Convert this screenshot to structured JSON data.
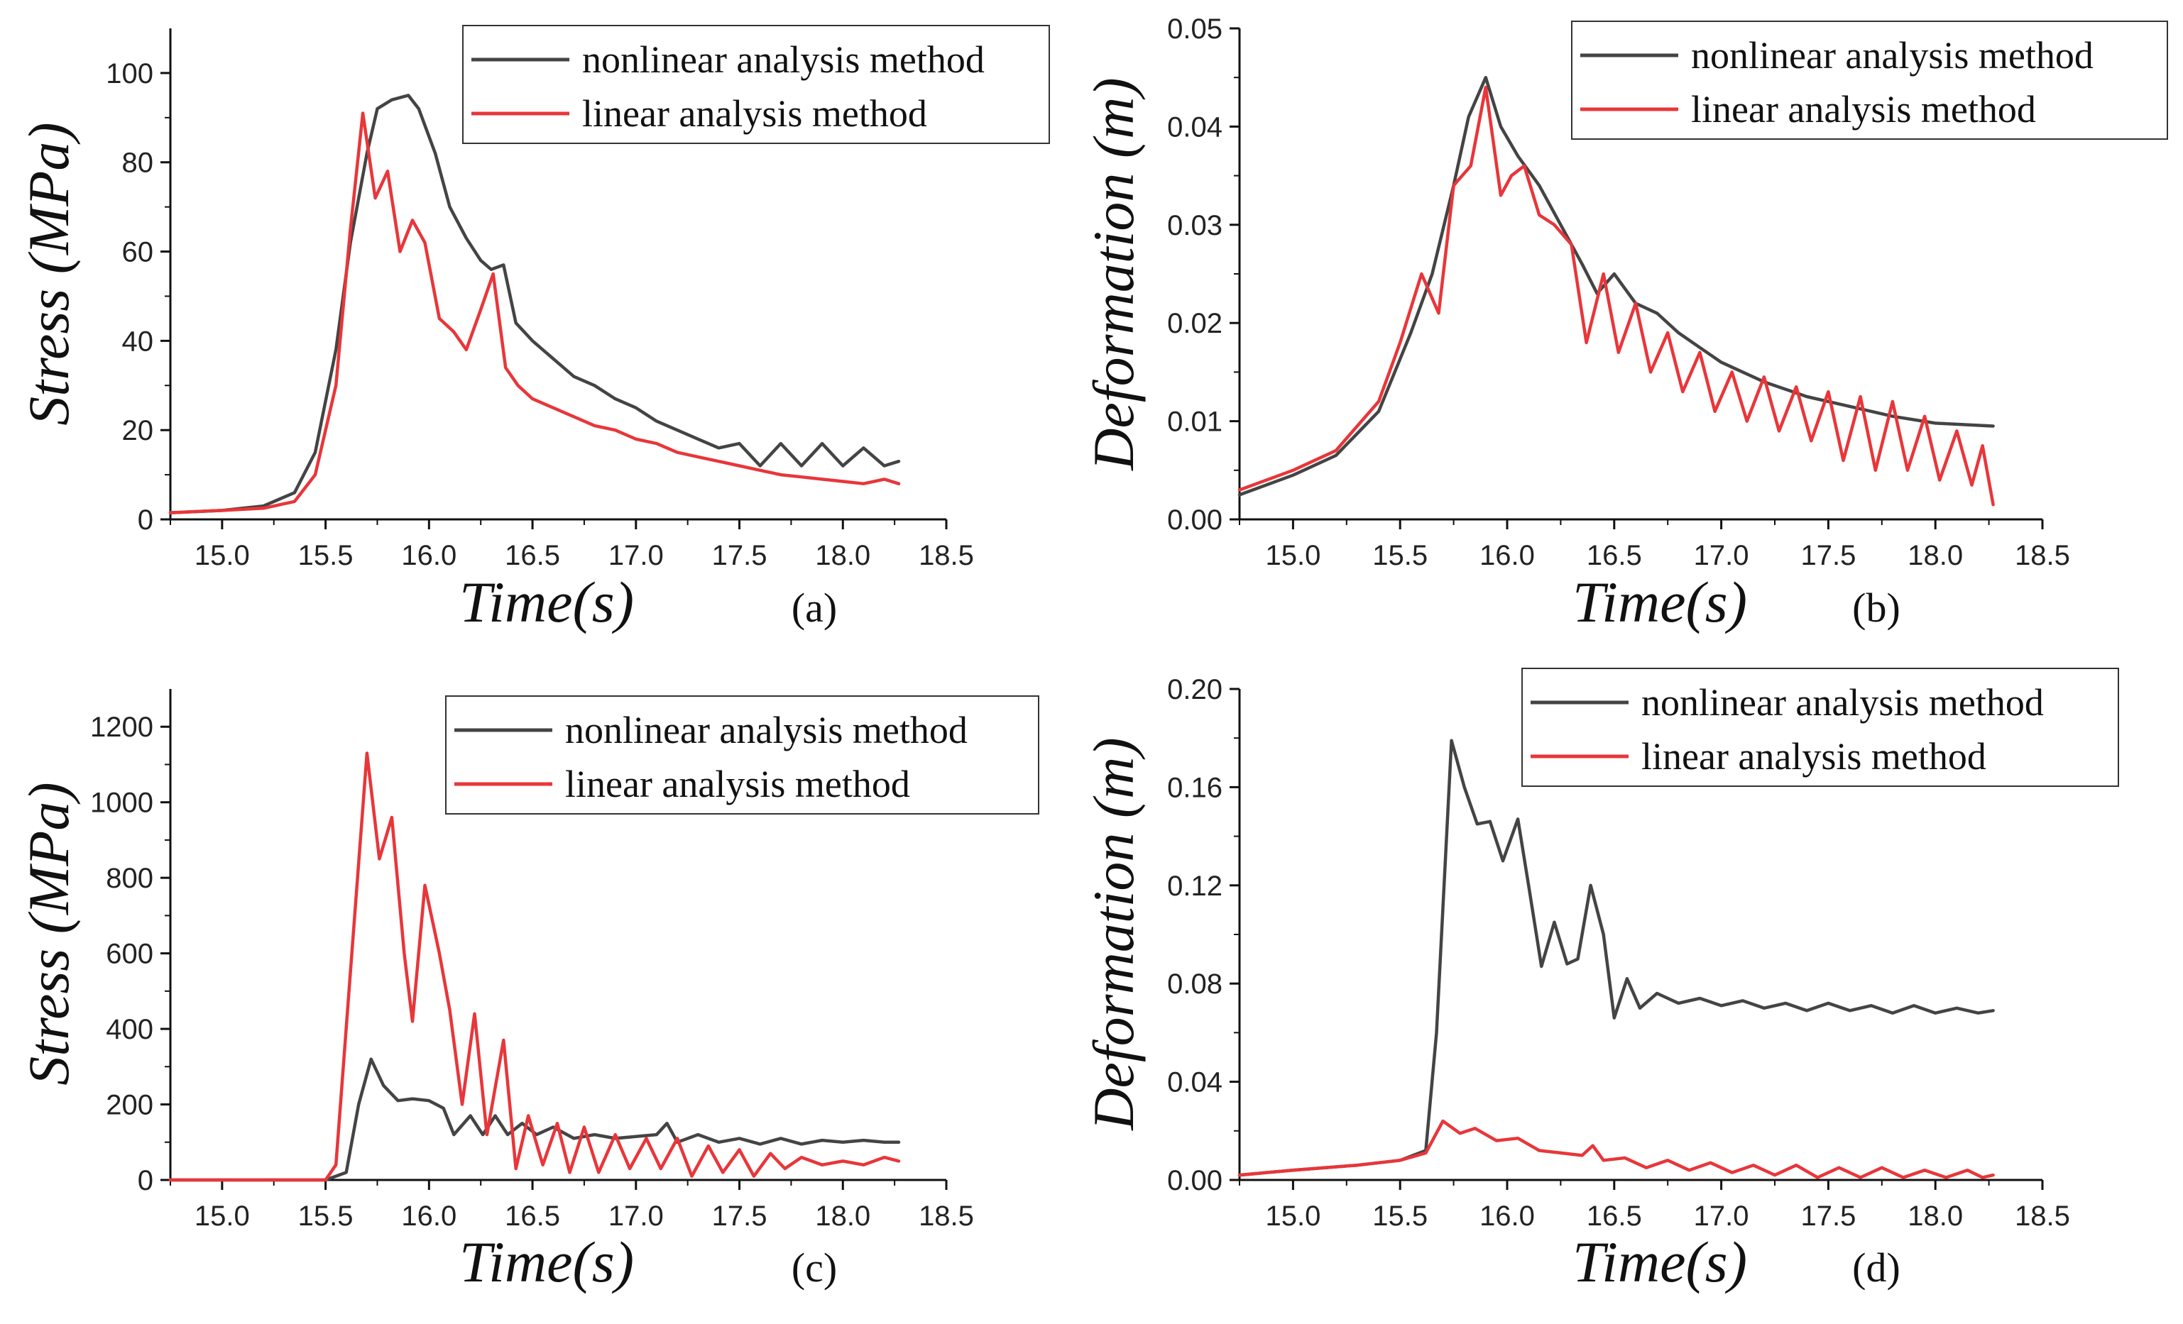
{
  "colors": {
    "nonlinear": "#444444",
    "linear": "#e8363a",
    "axis": "#111111",
    "legend_border": "#333333"
  },
  "chart_data": [
    {
      "id": "a",
      "type": "line",
      "panel_label": "(a)",
      "xlabel": "Time(s)",
      "ylabel": "Stress (MPa)",
      "xlim": [
        14.75,
        18.5
      ],
      "ylim": [
        0,
        110
      ],
      "xticks": [
        15.0,
        15.5,
        16.0,
        16.5,
        17.0,
        17.5,
        18.0,
        18.5
      ],
      "xtick_labels": [
        "15.0",
        "15.5",
        "16.0",
        "16.5",
        "17.0",
        "17.5",
        "18.0",
        "18.5"
      ],
      "yticks": [
        0,
        20,
        40,
        60,
        80,
        100
      ],
      "ytick_labels": [
        "0",
        "20",
        "40",
        "60",
        "80",
        "100"
      ],
      "legend": [
        "nonlinear analysis method",
        "linear analysis method"
      ],
      "series": [
        {
          "name": "nonlinear analysis method",
          "color_key": "nonlinear",
          "x": [
            14.75,
            15.0,
            15.2,
            15.35,
            15.45,
            15.55,
            15.62,
            15.7,
            15.75,
            15.82,
            15.9,
            15.95,
            16.03,
            16.1,
            16.18,
            16.25,
            16.3,
            16.36,
            16.42,
            16.5,
            16.6,
            16.7,
            16.8,
            16.9,
            17.0,
            17.1,
            17.2,
            17.3,
            17.4,
            17.5,
            17.6,
            17.7,
            17.8,
            17.9,
            18.0,
            18.1,
            18.2,
            18.27
          ],
          "y": [
            1.5,
            2,
            3,
            6,
            15,
            38,
            62,
            82,
            92,
            94,
            95,
            92,
            82,
            70,
            63,
            58,
            56,
            57,
            44,
            40,
            36,
            32,
            30,
            27,
            25,
            22,
            20,
            18,
            16,
            17,
            12,
            17,
            12,
            17,
            12,
            16,
            12,
            13
          ]
        },
        {
          "name": "linear analysis method",
          "color_key": "linear",
          "x": [
            14.75,
            15.0,
            15.2,
            15.35,
            15.45,
            15.55,
            15.62,
            15.68,
            15.74,
            15.8,
            15.86,
            15.92,
            15.98,
            16.05,
            16.12,
            16.18,
            16.25,
            16.31,
            16.37,
            16.43,
            16.5,
            16.6,
            16.7,
            16.8,
            16.9,
            17.0,
            17.1,
            17.2,
            17.3,
            17.4,
            17.5,
            17.6,
            17.7,
            17.8,
            17.9,
            18.0,
            18.1,
            18.2,
            18.27
          ],
          "y": [
            1.5,
            2,
            2.5,
            4,
            10,
            30,
            65,
            91,
            72,
            78,
            60,
            67,
            62,
            45,
            42,
            38,
            47,
            55,
            34,
            30,
            27,
            25,
            23,
            21,
            20,
            18,
            17,
            15,
            14,
            13,
            12,
            11,
            10,
            9.5,
            9,
            8.5,
            8,
            9,
            8
          ]
        }
      ]
    },
    {
      "id": "b",
      "type": "line",
      "panel_label": "(b)",
      "xlabel": "Time(s)",
      "ylabel": "Deformation (m)",
      "xlim": [
        14.75,
        18.5
      ],
      "ylim": [
        0,
        0.05
      ],
      "xticks": [
        15.0,
        15.5,
        16.0,
        16.5,
        17.0,
        17.5,
        18.0,
        18.5
      ],
      "xtick_labels": [
        "15.0",
        "15.5",
        "16.0",
        "16.5",
        "17.0",
        "17.5",
        "18.0",
        "18.5"
      ],
      "yticks": [
        0,
        0.01,
        0.02,
        0.03,
        0.04,
        0.05
      ],
      "ytick_labels": [
        "0.00",
        "0.01",
        "0.02",
        "0.03",
        "0.04",
        "0.05"
      ],
      "legend": [
        "nonlinear analysis method",
        "linear analysis method"
      ],
      "series": [
        {
          "name": "nonlinear analysis method",
          "color_key": "nonlinear",
          "x": [
            14.75,
            15.0,
            15.2,
            15.4,
            15.55,
            15.65,
            15.75,
            15.82,
            15.9,
            15.97,
            16.05,
            16.15,
            16.25,
            16.35,
            16.42,
            16.5,
            16.6,
            16.7,
            16.8,
            16.9,
            17.0,
            17.2,
            17.4,
            17.6,
            17.8,
            18.0,
            18.27
          ],
          "y": [
            0.0025,
            0.0045,
            0.0065,
            0.011,
            0.019,
            0.025,
            0.034,
            0.041,
            0.045,
            0.04,
            0.037,
            0.034,
            0.03,
            0.026,
            0.023,
            0.025,
            0.022,
            0.021,
            0.019,
            0.0175,
            0.016,
            0.014,
            0.0125,
            0.0115,
            0.0105,
            0.0098,
            0.0095
          ]
        },
        {
          "name": "linear analysis method",
          "color_key": "linear",
          "x": [
            14.75,
            15.0,
            15.2,
            15.4,
            15.5,
            15.6,
            15.68,
            15.75,
            15.83,
            15.9,
            15.97,
            16.02,
            16.08,
            16.15,
            16.22,
            16.3,
            16.37,
            16.45,
            16.52,
            16.6,
            16.67,
            16.75,
            16.82,
            16.9,
            16.97,
            17.05,
            17.12,
            17.2,
            17.27,
            17.35,
            17.42,
            17.5,
            17.57,
            17.65,
            17.72,
            17.8,
            17.87,
            17.95,
            18.02,
            18.1,
            18.17,
            18.22,
            18.27
          ],
          "y": [
            0.003,
            0.005,
            0.007,
            0.012,
            0.018,
            0.025,
            0.021,
            0.034,
            0.036,
            0.044,
            0.033,
            0.035,
            0.036,
            0.031,
            0.03,
            0.028,
            0.018,
            0.025,
            0.017,
            0.022,
            0.015,
            0.019,
            0.013,
            0.017,
            0.011,
            0.015,
            0.01,
            0.0145,
            0.009,
            0.0135,
            0.008,
            0.013,
            0.006,
            0.0125,
            0.005,
            0.012,
            0.005,
            0.0105,
            0.004,
            0.009,
            0.0035,
            0.0075,
            0.0015
          ]
        }
      ]
    },
    {
      "id": "c",
      "type": "line",
      "panel_label": "(c)",
      "xlabel": "Time(s)",
      "ylabel": "Stress (MPa)",
      "xlim": [
        14.75,
        18.5
      ],
      "ylim": [
        0,
        1300
      ],
      "xticks": [
        15.0,
        15.5,
        16.0,
        16.5,
        17.0,
        17.5,
        18.0,
        18.5
      ],
      "xtick_labels": [
        "15.0",
        "15.5",
        "16.0",
        "16.5",
        "17.0",
        "17.5",
        "18.0",
        "18.5"
      ],
      "yticks": [
        0,
        200,
        400,
        600,
        800,
        1000,
        1200
      ],
      "ytick_labels": [
        "0",
        "200",
        "400",
        "600",
        "800",
        "1000",
        "1200"
      ],
      "legend": [
        "nonlinear analysis method",
        "linear analysis method"
      ],
      "series": [
        {
          "name": "nonlinear analysis method",
          "color_key": "nonlinear",
          "x": [
            14.75,
            15.5,
            15.6,
            15.66,
            15.72,
            15.78,
            15.85,
            15.92,
            16.0,
            16.07,
            16.12,
            16.2,
            16.26,
            16.32,
            16.38,
            16.45,
            16.52,
            16.6,
            16.7,
            16.8,
            16.9,
            17.0,
            17.1,
            17.15,
            17.2,
            17.3,
            17.4,
            17.5,
            17.6,
            17.7,
            17.8,
            17.9,
            18.0,
            18.1,
            18.2,
            18.27
          ],
          "y": [
            0,
            0,
            20,
            200,
            320,
            250,
            210,
            215,
            210,
            190,
            120,
            170,
            120,
            170,
            120,
            150,
            120,
            140,
            110,
            120,
            110,
            115,
            120,
            150,
            100,
            120,
            100,
            110,
            95,
            110,
            95,
            105,
            100,
            105,
            100,
            100
          ]
        },
        {
          "name": "linear analysis method",
          "color_key": "linear",
          "x": [
            14.75,
            15.5,
            15.55,
            15.62,
            15.7,
            15.76,
            15.82,
            15.88,
            15.92,
            15.98,
            16.05,
            16.1,
            16.16,
            16.22,
            16.28,
            16.36,
            16.42,
            16.48,
            16.55,
            16.62,
            16.68,
            16.75,
            16.82,
            16.9,
            16.97,
            17.05,
            17.12,
            17.2,
            17.27,
            17.35,
            17.42,
            17.5,
            17.57,
            17.65,
            17.72,
            17.8,
            17.9,
            18.0,
            18.1,
            18.2,
            18.27
          ],
          "y": [
            0,
            0,
            40,
            550,
            1130,
            850,
            960,
            600,
            420,
            780,
            600,
            450,
            200,
            440,
            120,
            370,
            30,
            170,
            40,
            150,
            20,
            140,
            20,
            120,
            30,
            110,
            30,
            110,
            10,
            90,
            20,
            80,
            10,
            70,
            30,
            60,
            40,
            50,
            40,
            60,
            50
          ]
        }
      ]
    },
    {
      "id": "d",
      "type": "line",
      "panel_label": "(d)",
      "xlabel": "Time(s)",
      "ylabel": "Deformation (m)",
      "xlim": [
        14.75,
        18.5
      ],
      "ylim": [
        0,
        0.2
      ],
      "xticks": [
        15.0,
        15.5,
        16.0,
        16.5,
        17.0,
        17.5,
        18.0,
        18.5
      ],
      "xtick_labels": [
        "15.0",
        "15.5",
        "16.0",
        "16.5",
        "17.0",
        "17.5",
        "18.0",
        "18.5"
      ],
      "yticks": [
        0,
        0.04,
        0.08,
        0.12,
        0.16,
        0.2
      ],
      "ytick_labels": [
        "0.00",
        "0.04",
        "0.08",
        "0.12",
        "0.16",
        "0.20"
      ],
      "legend": [
        "nonlinear analysis method",
        "linear analysis method"
      ],
      "series": [
        {
          "name": "nonlinear analysis method",
          "color_key": "nonlinear",
          "x": [
            14.75,
            15.0,
            15.3,
            15.5,
            15.62,
            15.67,
            15.74,
            15.8,
            15.86,
            15.92,
            15.98,
            16.05,
            16.1,
            16.16,
            16.22,
            16.28,
            16.33,
            16.39,
            16.45,
            16.5,
            16.56,
            16.62,
            16.7,
            16.8,
            16.9,
            17.0,
            17.1,
            17.2,
            17.3,
            17.4,
            17.5,
            17.6,
            17.7,
            17.8,
            17.9,
            18.0,
            18.1,
            18.2,
            18.27
          ],
          "y": [
            0.002,
            0.004,
            0.006,
            0.008,
            0.012,
            0.06,
            0.179,
            0.16,
            0.145,
            0.146,
            0.13,
            0.147,
            0.12,
            0.087,
            0.105,
            0.088,
            0.09,
            0.12,
            0.1,
            0.066,
            0.082,
            0.07,
            0.076,
            0.072,
            0.074,
            0.071,
            0.073,
            0.07,
            0.072,
            0.069,
            0.072,
            0.069,
            0.071,
            0.068,
            0.071,
            0.068,
            0.07,
            0.068,
            0.069
          ]
        },
        {
          "name": "linear analysis method",
          "color_key": "linear",
          "x": [
            14.75,
            15.0,
            15.3,
            15.5,
            15.62,
            15.7,
            15.78,
            15.85,
            15.95,
            16.05,
            16.15,
            16.25,
            16.35,
            16.4,
            16.45,
            16.55,
            16.65,
            16.75,
            16.85,
            16.95,
            17.05,
            17.15,
            17.25,
            17.35,
            17.45,
            17.55,
            17.65,
            17.75,
            17.85,
            17.95,
            18.05,
            18.15,
            18.22,
            18.27
          ],
          "y": [
            0.002,
            0.004,
            0.006,
            0.008,
            0.011,
            0.024,
            0.019,
            0.021,
            0.016,
            0.017,
            0.012,
            0.011,
            0.01,
            0.014,
            0.008,
            0.009,
            0.005,
            0.008,
            0.004,
            0.007,
            0.003,
            0.006,
            0.002,
            0.006,
            0.001,
            0.005,
            0.001,
            0.005,
            0.001,
            0.004,
            0.001,
            0.004,
            0.001,
            0.002
          ]
        }
      ]
    }
  ]
}
